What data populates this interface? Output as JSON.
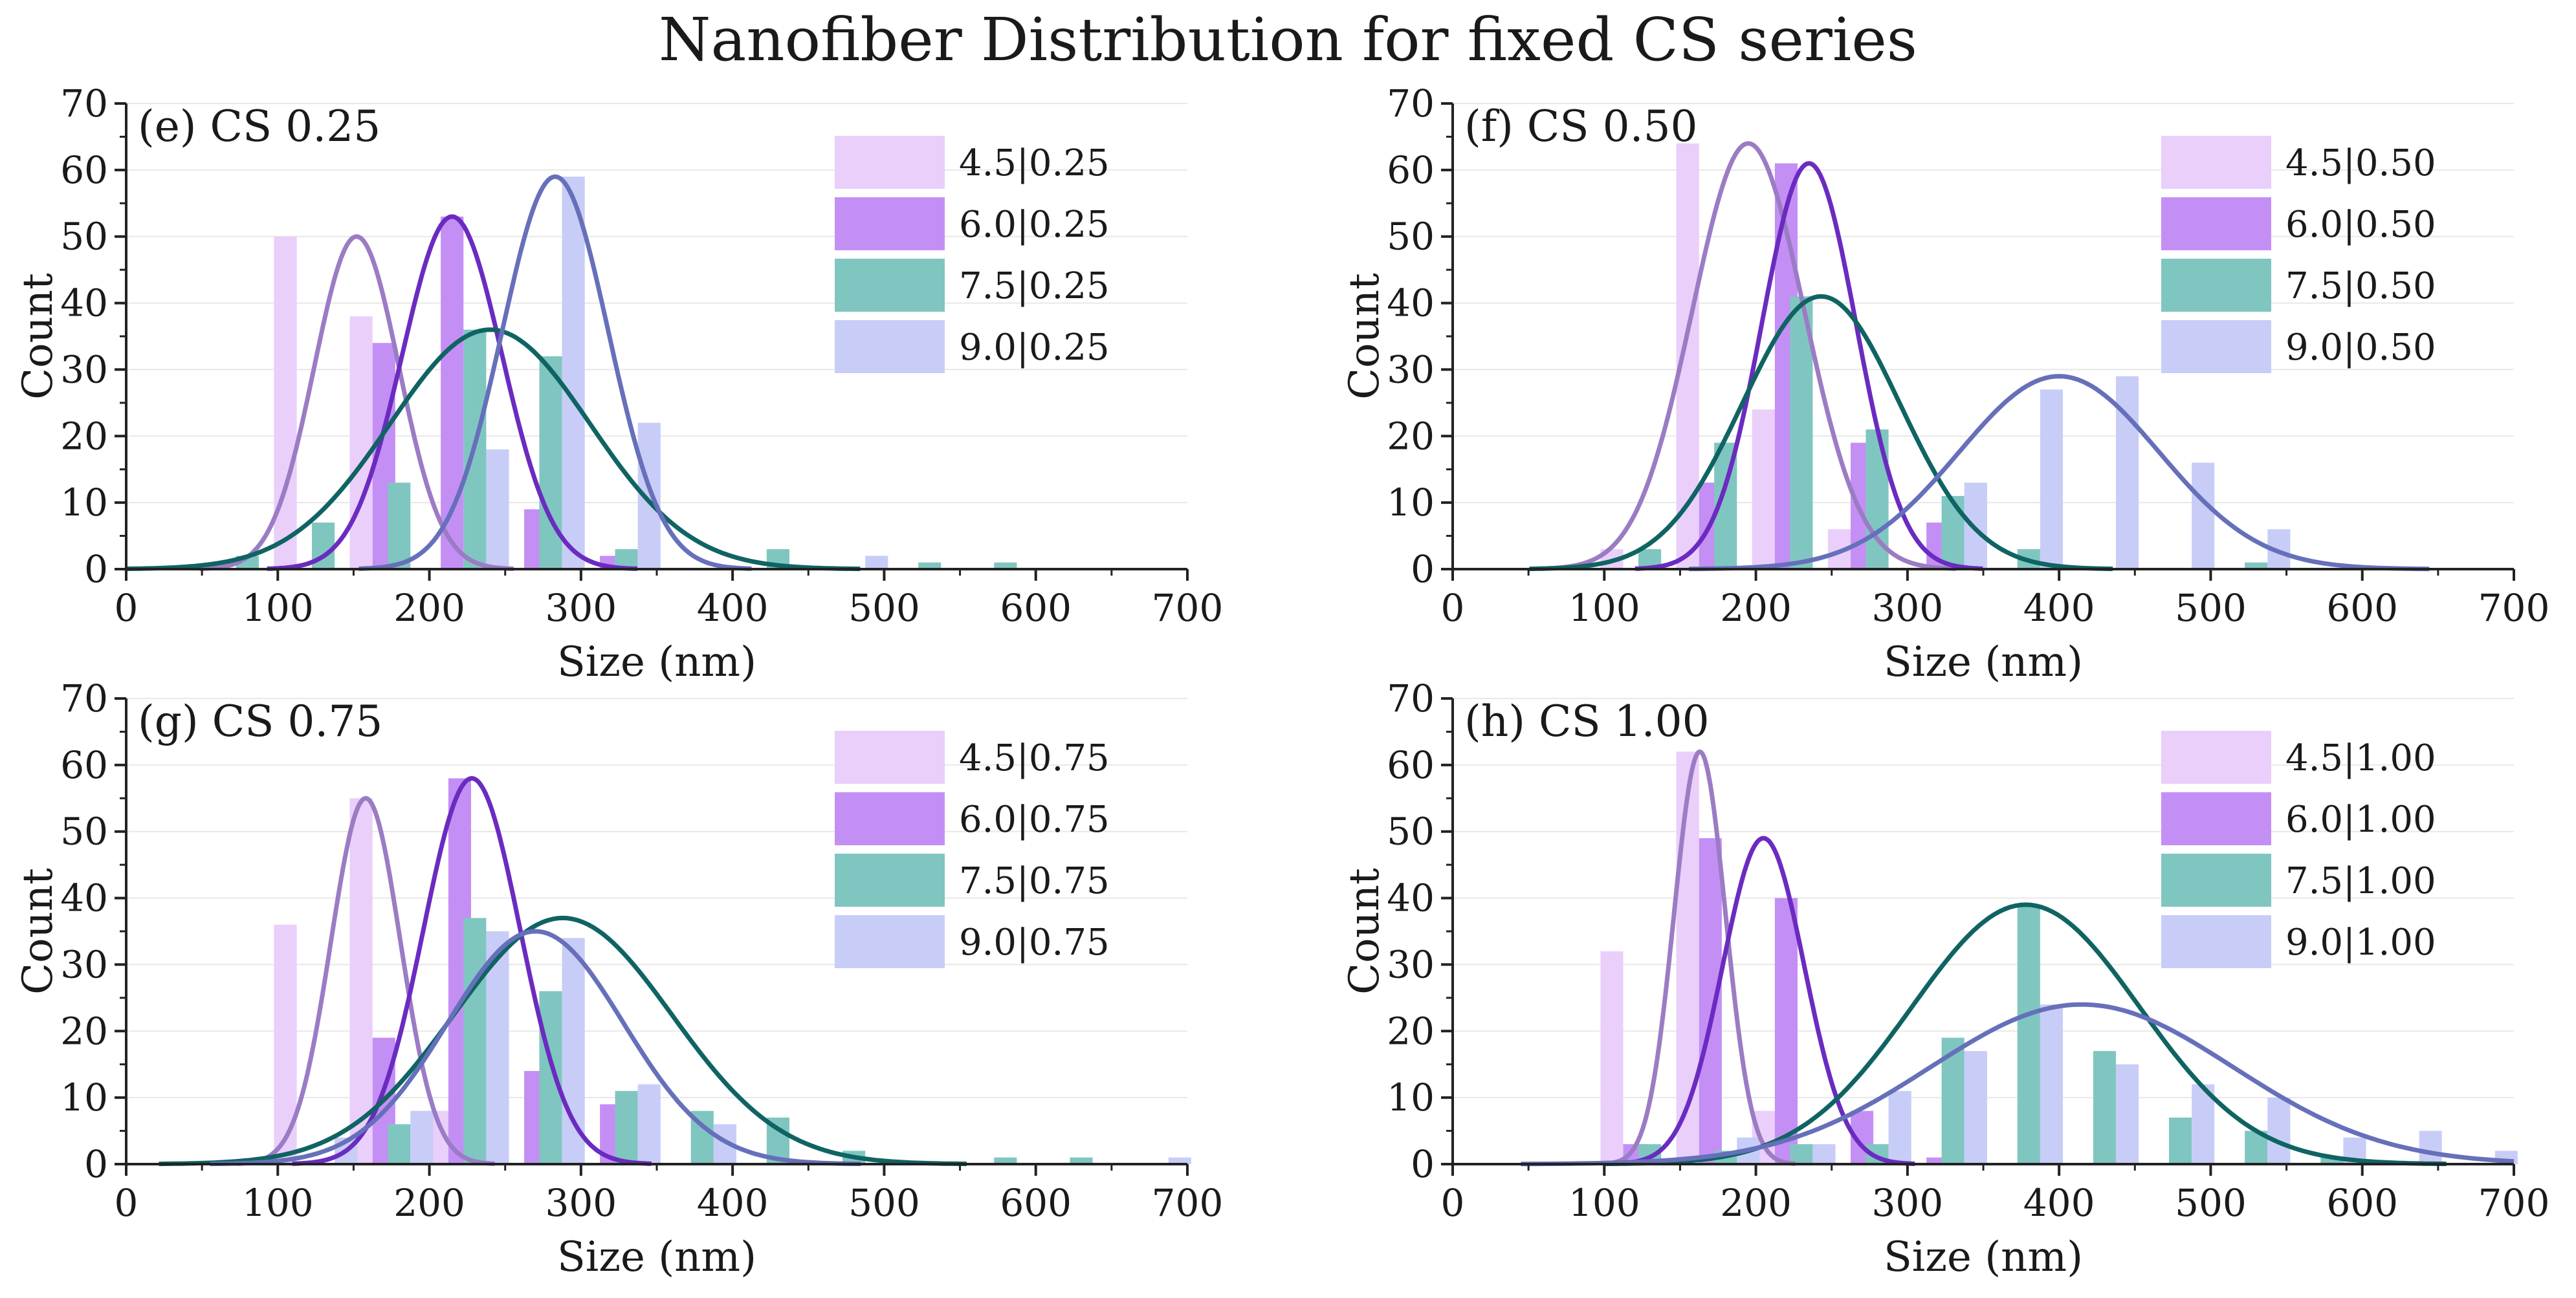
{
  "figure_title": "Nanofiber Distribution for fixed CS series",
  "colors": {
    "4.5": {
      "bar": "#e9cffa",
      "curve": "#9b7cc4"
    },
    "6.0": {
      "bar": "#c48ff5",
      "curve": "#6b2bc0"
    },
    "7.5": {
      "bar": "#80c6c0",
      "curve": "#0f6463"
    },
    "9.0": {
      "bar": "#c8cdf7",
      "curve": "#6670ba"
    },
    "grid": "#e8e8e8",
    "axis": "#222222"
  },
  "chart_data": [
    {
      "type": "bar",
      "panel_label": "(e) CS 0.25",
      "xlabel": "Size (nm)",
      "ylabel": "Count",
      "xlim": [
        0,
        700
      ],
      "ylim": [
        0,
        70
      ],
      "xticks": [
        0,
        100,
        200,
        300,
        400,
        500,
        600,
        700
      ],
      "yticks": [
        0,
        10,
        20,
        30,
        40,
        50,
        60,
        70
      ],
      "legend": [
        "4.5|0.25",
        "6.0|0.25",
        "7.5|0.25",
        "9.0|0.25"
      ],
      "series": [
        {
          "name": "4.5|0.25",
          "key": "4.5",
          "x": [
            105,
            155
          ],
          "values": [
            50,
            38
          ],
          "fit": {
            "mean": 152,
            "sd": 28,
            "peak": 50
          }
        },
        {
          "name": "6.0|0.25",
          "key": "6.0",
          "x": [
            170,
            215,
            270,
            320
          ],
          "values": [
            34,
            53,
            9,
            2
          ],
          "fit": {
            "mean": 215,
            "sd": 33,
            "peak": 53
          }
        },
        {
          "name": "7.5|0.25",
          "key": "7.5",
          "x": [
            80,
            130,
            180,
            230,
            280,
            330,
            430,
            530,
            580
          ],
          "values": [
            2,
            7,
            13,
            36,
            32,
            3,
            3,
            1,
            1
          ],
          "fit": {
            "mean": 240,
            "sd": 66,
            "peak": 36
          }
        },
        {
          "name": "9.0|0.25",
          "key": "9.0",
          "x": [
            245,
            295,
            345,
            495
          ],
          "values": [
            18,
            59,
            22,
            2
          ],
          "fit": {
            "mean": 283,
            "sd": 35,
            "peak": 59
          }
        }
      ]
    },
    {
      "type": "bar",
      "panel_label": "(f) CS 0.50",
      "xlabel": "Size (nm)",
      "ylabel": "Count",
      "xlim": [
        0,
        700
      ],
      "ylim": [
        0,
        70
      ],
      "xticks": [
        0,
        100,
        200,
        300,
        400,
        500,
        600,
        700
      ],
      "yticks": [
        0,
        10,
        20,
        30,
        40,
        50,
        60,
        70
      ],
      "legend": [
        "4.5|0.50",
        "6.0|0.50",
        "7.5|0.50",
        "9.0|0.50"
      ],
      "series": [
        {
          "name": "4.5|0.50",
          "key": "4.5",
          "x": [
            105,
            155,
            205,
            255
          ],
          "values": [
            3,
            64,
            24,
            6
          ],
          "fit": {
            "mean": 195,
            "sd": 37,
            "peak": 64
          }
        },
        {
          "name": "6.0|0.50",
          "key": "6.0",
          "x": [
            170,
            220,
            270,
            320
          ],
          "values": [
            13,
            61,
            19,
            7
          ],
          "fit": {
            "mean": 235,
            "sd": 31,
            "peak": 61
          }
        },
        {
          "name": "7.5|0.50",
          "key": "7.5",
          "x": [
            130,
            180,
            230,
            280,
            330,
            380,
            530
          ],
          "values": [
            3,
            19,
            41,
            21,
            11,
            3,
            1
          ],
          "fit": {
            "mean": 243,
            "sd": 52,
            "peak": 41
          }
        },
        {
          "name": "9.0|0.50",
          "key": "9.0",
          "x": [
            345,
            395,
            445,
            495,
            545
          ],
          "values": [
            13,
            27,
            29,
            16,
            6
          ],
          "fit": {
            "mean": 400,
            "sd": 66,
            "peak": 29
          }
        }
      ]
    },
    {
      "type": "bar",
      "panel_label": "(g) CS 0.75",
      "xlabel": "Size (nm)",
      "ylabel": "Count",
      "xlim": [
        0,
        700
      ],
      "ylim": [
        0,
        70
      ],
      "xticks": [
        0,
        100,
        200,
        300,
        400,
        500,
        600,
        700
      ],
      "yticks": [
        0,
        10,
        20,
        30,
        40,
        50,
        60,
        70
      ],
      "legend": [
        "4.5|0.75",
        "6.0|0.75",
        "7.5|0.75",
        "9.0|0.75"
      ],
      "series": [
        {
          "name": "4.5|0.75",
          "key": "4.5",
          "x": [
            105,
            155,
            205
          ],
          "values": [
            36,
            55,
            8
          ],
          "fit": {
            "mean": 158,
            "sd": 23,
            "peak": 55
          }
        },
        {
          "name": "6.0|0.75",
          "key": "6.0",
          "x": [
            170,
            220,
            270,
            320
          ],
          "values": [
            19,
            58,
            14,
            9
          ],
          "fit": {
            "mean": 228,
            "sd": 32,
            "peak": 58
          }
        },
        {
          "name": "7.5|0.75",
          "key": "7.5",
          "x": [
            180,
            230,
            280,
            330,
            380,
            430,
            480,
            580,
            630
          ],
          "values": [
            6,
            37,
            26,
            11,
            8,
            7,
            2,
            1,
            1
          ],
          "fit": {
            "mean": 288,
            "sd": 72,
            "peak": 37
          }
        },
        {
          "name": "9.0|0.75",
          "key": "9.0",
          "x": [
            145,
            195,
            245,
            295,
            345,
            395,
            695
          ],
          "values": [
            4,
            8,
            35,
            34,
            12,
            6,
            1
          ],
          "fit": {
            "mean": 270,
            "sd": 58,
            "peak": 35
          }
        }
      ]
    },
    {
      "type": "bar",
      "panel_label": "(h) CS 1.00",
      "xlabel": "Size (nm)",
      "ylabel": "Count",
      "xlim": [
        0,
        700
      ],
      "ylim": [
        0,
        70
      ],
      "xticks": [
        0,
        100,
        200,
        300,
        400,
        500,
        600,
        700
      ],
      "yticks": [
        0,
        10,
        20,
        30,
        40,
        50,
        60,
        70
      ],
      "legend": [
        "4.5|1.00",
        "6.0|1.00",
        "7.5|1.00",
        "9.0|1.00"
      ],
      "series": [
        {
          "name": "4.5|1.00",
          "key": "4.5",
          "x": [
            105,
            155,
            205
          ],
          "values": [
            32,
            62,
            8
          ],
          "fit": {
            "mean": 163,
            "sd": 17,
            "peak": 62
          }
        },
        {
          "name": "6.0|1.00",
          "key": "6.0",
          "x": [
            120,
            170,
            220,
            270,
            320
          ],
          "values": [
            3,
            49,
            40,
            8,
            1
          ],
          "fit": {
            "mean": 205,
            "sd": 27,
            "peak": 49
          }
        },
        {
          "name": "7.5|1.00",
          "key": "7.5",
          "x": [
            130,
            180,
            230,
            280,
            330,
            380,
            430,
            480,
            530,
            580
          ],
          "values": [
            3,
            2,
            3,
            3,
            19,
            39,
            17,
            7,
            5,
            1
          ],
          "fit": {
            "mean": 378,
            "sd": 75,
            "peak": 39
          }
        },
        {
          "name": "9.0|1.00",
          "key": "9.0",
          "x": [
            195,
            245,
            295,
            345,
            395,
            445,
            495,
            545,
            595,
            645,
            695
          ],
          "values": [
            4,
            3,
            11,
            17,
            24,
            15,
            12,
            10,
            4,
            5,
            2
          ],
          "fit": {
            "mean": 415,
            "sd": 100,
            "peak": 24
          }
        }
      ]
    }
  ]
}
